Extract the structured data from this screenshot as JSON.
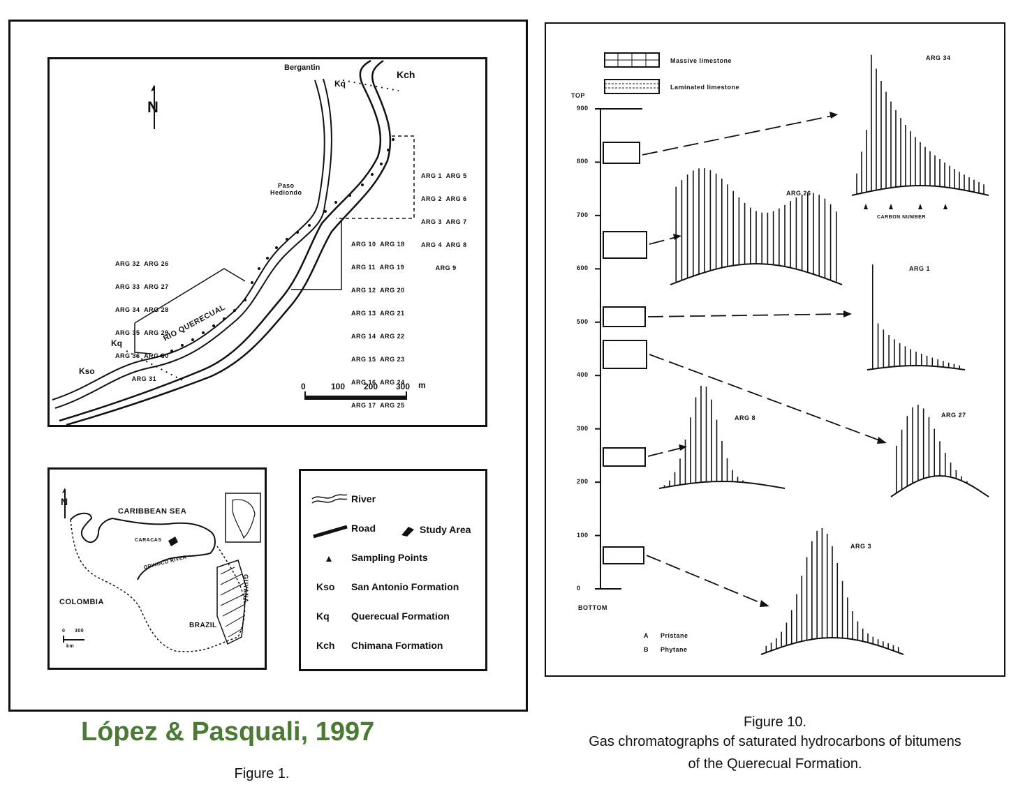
{
  "figure1": {
    "map": {
      "labels": {
        "bergantin": "Bergantin",
        "kq_top": "Kq",
        "kch": "Kch",
        "paso_hediondo": "Paso\nHediondo",
        "rio_querecual": "RIO QUERECUAL",
        "kq_left": "Kq",
        "kso": "Kso"
      },
      "sample_groups": {
        "right_top": [
          "ARG 1  ARG 5",
          "ARG 2  ARG 6",
          "ARG 3  ARG 7",
          "ARG 4  ARG 8",
          "       ARG 9"
        ],
        "right_mid": [
          "ARG 10  ARG 18",
          "ARG 11  ARG 19",
          "ARG 12  ARG 20",
          "ARG 13  ARG 21",
          "ARG 14  ARG 22",
          "ARG 15  ARG 23",
          "ARG 16  ARG 24",
          "ARG 17  ARG 25"
        ],
        "left": [
          "ARG 32  ARG 26",
          "ARG 33  ARG 27",
          "ARG 34  ARG 28",
          "ARG 35  ARG 29",
          "ARG 36  ARG 30",
          "        ARG 31"
        ]
      },
      "scale": {
        "ticks": [
          "0",
          "100",
          "200",
          "300"
        ],
        "unit": "m"
      },
      "north": "N"
    },
    "inset": {
      "caribbean": "CARIBBEAN SEA",
      "colombia": "COLOMBIA",
      "brazil": "BRAZIL",
      "guyana": "GUYANA",
      "caracas": "CARACAS",
      "orinoco": "ORINOCO RIVER",
      "scale0": "0",
      "scale300": "300",
      "scale_unit": "km",
      "north": "N"
    },
    "legend": [
      {
        "key": "river",
        "label": "River"
      },
      {
        "key": "road",
        "label": "Road"
      },
      {
        "key": "study",
        "label": "Study Area"
      },
      {
        "key": "sampling",
        "label": "Sampling Points"
      },
      {
        "key": "Kso",
        "label": "San Antonio Formation"
      },
      {
        "key": "Kq",
        "label": "Querecual Formation"
      },
      {
        "key": "Kch",
        "label": "Chimana Formation"
      }
    ],
    "caption": "Figure 1."
  },
  "author_credit": "López & Pasquali, 1997",
  "figure10": {
    "legend_massive": "Massive limestone",
    "legend_laminated": "Laminated limestone",
    "top_label": "TOP",
    "bottom_label": "BOTTOM",
    "depth_ticks": [
      "900",
      "800",
      "700",
      "600",
      "500",
      "400",
      "300",
      "200",
      "100",
      "0"
    ],
    "chromatograms": [
      "ARG 34",
      "ARG 26",
      "ARG 1",
      "ARG 8",
      "ARG 27",
      "ARG 3"
    ],
    "carbon_number_label": "CARBON NUMBER",
    "pristane_key": "A",
    "pristane": "Pristane",
    "phytane_key": "B",
    "phytane": "Phytane",
    "caption_title": "Figure 10.",
    "caption_line1": "Gas chromatographs of saturated hydrocarbons of bitumens",
    "caption_line2": "of the Querecual Formation."
  },
  "colors": {
    "ink": "#111111",
    "author": "#4a7a33"
  }
}
